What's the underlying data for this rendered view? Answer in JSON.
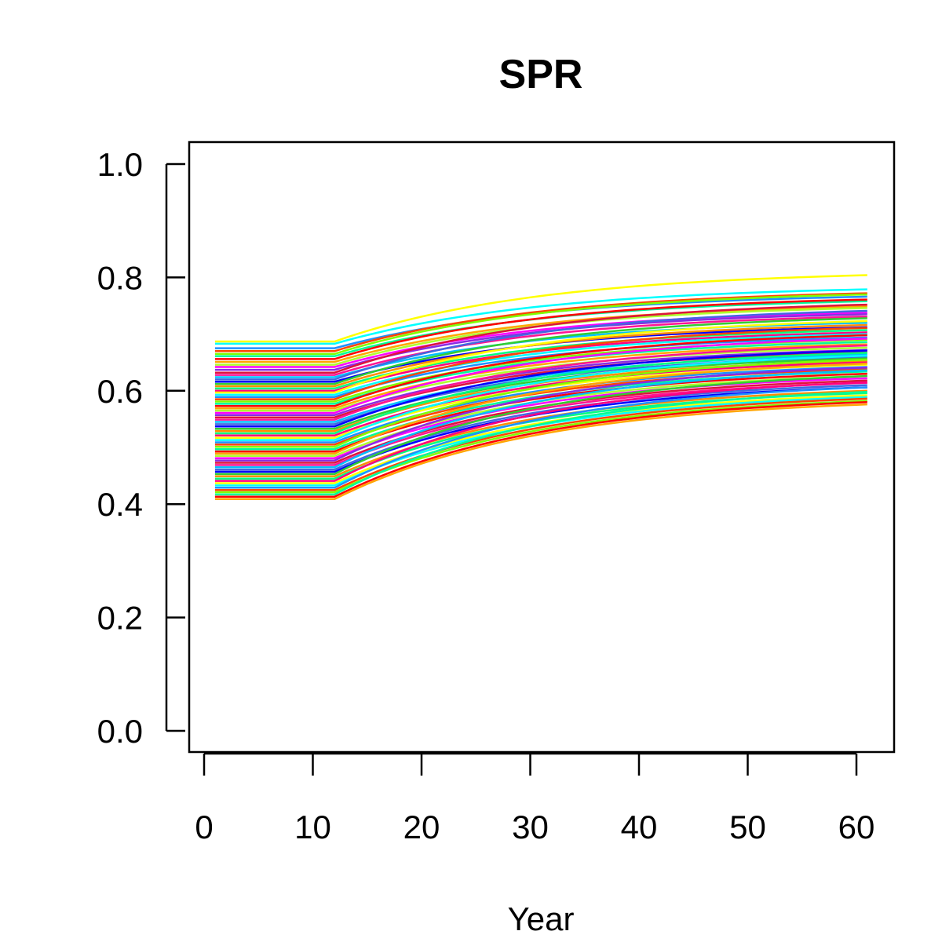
{
  "chart_data": {
    "type": "line",
    "title": "SPR",
    "xlabel": "Year",
    "ylabel": "",
    "xlim": [
      1,
      61
    ],
    "ylim": [
      0,
      1
    ],
    "x_ticks": [
      "0",
      "10",
      "20",
      "30",
      "40",
      "50",
      "60"
    ],
    "y_ticks": [
      "0.0",
      "0.2",
      "0.4",
      "0.6",
      "0.8",
      "1.0"
    ],
    "grid": false,
    "legend": "none",
    "series_model": {
      "description_x": [
        1,
        12,
        61
      ],
      "constant_until_year": 12,
      "start_values": [
        0.687,
        0.683,
        0.675,
        0.67,
        0.665,
        0.661,
        0.656,
        0.651,
        0.646,
        0.642,
        0.637,
        0.632,
        0.628,
        0.624,
        0.62,
        0.616,
        0.612,
        0.608,
        0.604,
        0.6,
        0.597,
        0.593,
        0.589,
        0.585,
        0.581,
        0.577,
        0.573,
        0.569,
        0.565,
        0.561,
        0.557,
        0.553,
        0.549,
        0.545,
        0.541,
        0.537,
        0.533,
        0.529,
        0.525,
        0.521,
        0.517,
        0.513,
        0.509,
        0.505,
        0.501,
        0.497,
        0.493,
        0.489,
        0.485,
        0.481,
        0.477,
        0.473,
        0.469,
        0.465,
        0.461,
        0.457,
        0.453,
        0.449,
        0.445,
        0.441,
        0.437,
        0.433,
        0.429,
        0.425,
        0.421,
        0.417,
        0.413,
        0.409
      ],
      "end_values": [
        0.804,
        0.779,
        0.766,
        0.772,
        0.77,
        0.758,
        0.761,
        0.749,
        0.746,
        0.738,
        0.735,
        0.752,
        0.731,
        0.72,
        0.741,
        0.712,
        0.728,
        0.716,
        0.707,
        0.703,
        0.723,
        0.7,
        0.694,
        0.711,
        0.69,
        0.686,
        0.698,
        0.682,
        0.676,
        0.692,
        0.672,
        0.668,
        0.68,
        0.664,
        0.66,
        0.671,
        0.657,
        0.653,
        0.667,
        0.65,
        0.646,
        0.662,
        0.642,
        0.638,
        0.655,
        0.634,
        0.63,
        0.648,
        0.626,
        0.622,
        0.641,
        0.618,
        0.614,
        0.636,
        0.61,
        0.606,
        0.626,
        0.6,
        0.596,
        0.615,
        0.592,
        0.589,
        0.606,
        0.586,
        0.582,
        0.598,
        0.58,
        0.576
      ]
    }
  },
  "colors": {
    "palette": [
      "#ffff00",
      "#ff4500",
      "#ff0000",
      "#ff00ff",
      "#ff1493",
      "#0000ff",
      "#00ff7f",
      "#00ffff",
      "#7fff00",
      "#ffa500",
      "#8a2be2",
      "#00bfff",
      "#32cd32",
      "#ff007f",
      "#1e90ff",
      "#00fa9a",
      "#adff2f",
      "#dc143c",
      "#4169e1",
      "#ff8c00"
    ],
    "axis": "#000000",
    "background": "#ffffff"
  }
}
